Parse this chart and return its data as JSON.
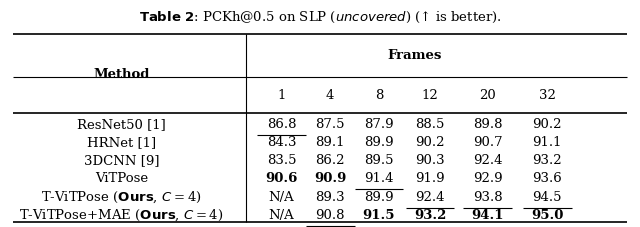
{
  "title_bold": "Table 2",
  "title_rest": ": PCKh@0.5 on SLP (",
  "title_italic": "uncovered",
  "title_end": ") (↑ is better).",
  "col_header_top": "Frames",
  "col_header_sub": [
    "1",
    "4",
    "8",
    "12",
    "20",
    "32"
  ],
  "row_header": "Method",
  "rows": [
    {
      "method": "ResNet50 [1]",
      "method_parts": [
        [
          "ResNet50 [1]",
          "normal",
          "normal"
        ]
      ],
      "values": [
        "86.8",
        "87.5",
        "87.9",
        "88.5",
        "89.8",
        "90.2"
      ],
      "bold": [
        false,
        false,
        false,
        false,
        false,
        false
      ],
      "underline": [
        true,
        false,
        false,
        false,
        false,
        false
      ]
    },
    {
      "method": "HRNet [1]",
      "method_parts": [
        [
          "HRNet [1]",
          "normal",
          "normal"
        ]
      ],
      "values": [
        "84.3",
        "89.1",
        "89.9",
        "90.2",
        "90.7",
        "91.1"
      ],
      "bold": [
        false,
        false,
        false,
        false,
        false,
        false
      ],
      "underline": [
        false,
        false,
        false,
        false,
        false,
        false
      ]
    },
    {
      "method": "3DCNN [9]",
      "method_parts": [
        [
          "3DCNN [9]",
          "normal",
          "normal"
        ]
      ],
      "values": [
        "83.5",
        "86.2",
        "89.5",
        "90.3",
        "92.4",
        "93.2"
      ],
      "bold": [
        false,
        false,
        false,
        false,
        false,
        false
      ],
      "underline": [
        false,
        false,
        false,
        false,
        false,
        false
      ]
    },
    {
      "method": "ViTPose",
      "method_parts": [
        [
          "ViTPose",
          "normal",
          "normal"
        ]
      ],
      "values": [
        "90.6",
        "90.9",
        "91.4",
        "91.9",
        "92.9",
        "93.6"
      ],
      "bold": [
        true,
        true,
        false,
        false,
        false,
        false
      ],
      "underline": [
        false,
        false,
        true,
        false,
        false,
        false
      ]
    },
    {
      "method": "T-ViTPose (Ours, C = 4)",
      "method_parts": [
        [
          "T-ViTPose (",
          "normal",
          "normal"
        ],
        [
          "Ours",
          "bold",
          "normal"
        ],
        [
          ", ",
          "normal",
          "normal"
        ],
        [
          "C",
          "normal",
          "italic"
        ],
        [
          " = 4)",
          "normal",
          "normal"
        ]
      ],
      "values": [
        "N/A",
        "89.3",
        "89.9",
        "92.4",
        "93.8",
        "94.5"
      ],
      "bold": [
        false,
        false,
        false,
        false,
        false,
        false
      ],
      "underline": [
        false,
        false,
        false,
        true,
        true,
        true
      ]
    },
    {
      "method": "T-ViTPose+MAE (Ours, C = 4)",
      "method_parts": [
        [
          "T-ViTPose+MAE (",
          "normal",
          "normal"
        ],
        [
          "Ours",
          "bold",
          "normal"
        ],
        [
          ", ",
          "normal",
          "normal"
        ],
        [
          "C",
          "normal",
          "italic"
        ],
        [
          " = 4)",
          "normal",
          "normal"
        ]
      ],
      "values": [
        "N/A",
        "90.8",
        "91.5",
        "93.2",
        "94.1",
        "95.0"
      ],
      "bold": [
        false,
        false,
        true,
        true,
        true,
        true
      ],
      "underline": [
        false,
        true,
        false,
        false,
        false,
        false
      ]
    }
  ],
  "bg_color": "white",
  "text_color": "black",
  "font_size": 9.5,
  "figsize": [
    6.4,
    2.28
  ],
  "dpi": 100
}
